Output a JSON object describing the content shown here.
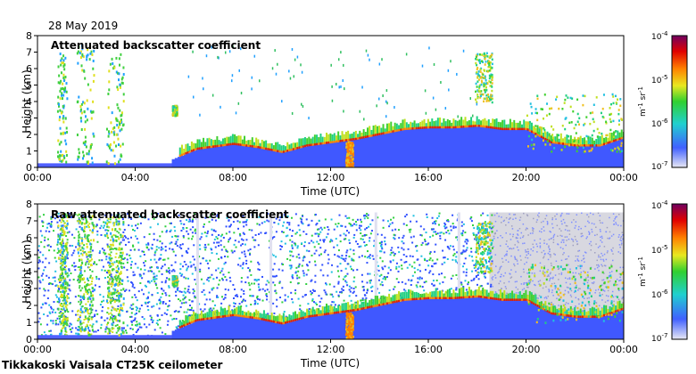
{
  "header": {
    "date": "28 May 2019"
  },
  "footer": {
    "caption": "Tikkakoski Vaisala CT25K ceilometer"
  },
  "chart_data": [
    {
      "type": "heatmap",
      "title": "Attenuated backscatter coefficient",
      "xlabel": "Time (UTC)",
      "ylabel": "Height (km)",
      "xlim": [
        0,
        24
      ],
      "ylim": [
        0,
        8
      ],
      "x_ticks": [
        "00:00",
        "04:00",
        "08:00",
        "12:00",
        "16:00",
        "20:00",
        "00:00"
      ],
      "y_ticks": [
        "0",
        "1",
        "2",
        "3",
        "4",
        "5",
        "6",
        "7",
        "8"
      ],
      "colorbar": {
        "scale": "log",
        "range": [
          1e-07,
          0.0001
        ],
        "unit": "m-1 sr-1",
        "ticks": [
          "10-7",
          "10-6",
          "10-5",
          "10-4"
        ]
      },
      "cloud_base_km": [
        [
          0,
          0.2
        ],
        [
          2,
          0.2
        ],
        [
          4,
          0.3
        ],
        [
          5.5,
          0.5
        ],
        [
          6.5,
          1.1
        ],
        [
          8,
          1.4
        ],
        [
          9,
          1.2
        ],
        [
          10,
          0.9
        ],
        [
          11,
          1.3
        ],
        [
          12,
          1.5
        ],
        [
          13,
          1.7
        ],
        [
          14,
          2.0
        ],
        [
          15,
          2.3
        ],
        [
          16,
          2.4
        ],
        [
          17,
          2.4
        ],
        [
          18,
          2.5
        ],
        [
          19,
          2.3
        ],
        [
          20,
          2.3
        ],
        [
          21,
          1.5
        ],
        [
          22,
          1.3
        ],
        [
          23,
          1.3
        ],
        [
          24,
          1.8
        ]
      ],
      "features": [
        {
          "t": [
            0.8,
            1.2
          ],
          "h": [
            0.3,
            7.0
          ],
          "kind": "rain streak"
        },
        {
          "t": [
            1.6,
            2.3
          ],
          "h": [
            0.3,
            7.5
          ],
          "kind": "rain streak"
        },
        {
          "t": [
            2.8,
            3.5
          ],
          "h": [
            0.3,
            7.0
          ],
          "kind": "rain streak"
        },
        {
          "t": [
            5.5,
            5.7
          ],
          "h": [
            3.2,
            3.8
          ],
          "kind": "cloud"
        },
        {
          "t": [
            17.9,
            18.6
          ],
          "h": [
            4.0,
            7.0
          ],
          "kind": "cloud"
        },
        {
          "t": [
            20.0,
            24.0
          ],
          "h": [
            1.0,
            4.5
          ],
          "kind": "cloud"
        },
        {
          "t": [
            12.6,
            12.9
          ],
          "h": [
            0.0,
            1.6
          ],
          "kind": "precipitation"
        }
      ]
    },
    {
      "type": "heatmap",
      "title": "Raw attenuated backscatter coefficient",
      "xlabel": "Time (UTC)",
      "ylabel": "Height (km)",
      "xlim": [
        0,
        24
      ],
      "ylim": [
        0,
        8
      ],
      "x_ticks": [
        "00:00",
        "04:00",
        "08:00",
        "12:00",
        "16:00",
        "20:00",
        "00:00"
      ],
      "y_ticks": [
        "0",
        "1",
        "2",
        "3",
        "4",
        "5",
        "6",
        "7",
        "8"
      ],
      "colorbar": {
        "scale": "log",
        "range": [
          1e-07,
          0.0001
        ],
        "unit": "m-1 sr-1",
        "ticks": [
          "10-7",
          "10-6",
          "10-5",
          "10-4"
        ]
      },
      "noise_band_km": [
        0,
        7.5
      ]
    }
  ]
}
